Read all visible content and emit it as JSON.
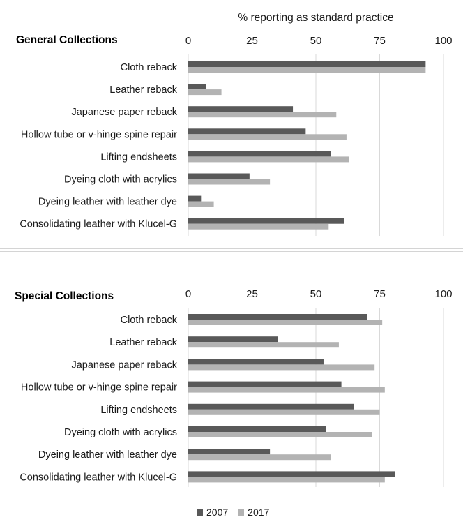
{
  "chart_data": [
    {
      "type": "bar",
      "orientation": "horizontal",
      "title": "General Collections",
      "xlabel": "% reporting as standard practice",
      "xlim": [
        0,
        100
      ],
      "ticks": [
        0,
        25,
        50,
        75,
        100
      ],
      "categories": [
        "Cloth reback",
        "Leather reback",
        "Japanese paper reback",
        "Hollow tube or v-hinge spine repair",
        "Lifting endsheets",
        "Dyeing cloth with acrylics",
        "Dyeing leather with leather dye",
        "Consolidating leather with Klucel-G"
      ],
      "series": [
        {
          "name": "2007",
          "values": [
            93,
            7,
            41,
            46,
            56,
            24,
            5,
            61
          ]
        },
        {
          "name": "2017",
          "values": [
            93,
            13,
            58,
            62,
            63,
            32,
            10,
            55
          ]
        }
      ]
    },
    {
      "type": "bar",
      "orientation": "horizontal",
      "title": "Special Collections",
      "xlim": [
        0,
        100
      ],
      "ticks": [
        0,
        25,
        50,
        75,
        100
      ],
      "categories": [
        "Cloth reback",
        "Leather reback",
        "Japanese paper reback",
        "Hollow tube or v-hinge spine repair",
        "Lifting endsheets",
        "Dyeing cloth with acrylics",
        "Dyeing leather with leather dye",
        "Consolidating leather with Klucel-G"
      ],
      "series": [
        {
          "name": "2007",
          "values": [
            70,
            35,
            53,
            60,
            65,
            54,
            32,
            81
          ]
        },
        {
          "name": "2017",
          "values": [
            76,
            59,
            73,
            77,
            75,
            72,
            56,
            77
          ]
        }
      ]
    }
  ],
  "legend": [
    {
      "label": "2007",
      "color": "#595959"
    },
    {
      "label": "2017",
      "color": "#b3b3b3"
    }
  ],
  "colors": {
    "gridline": "#d9d9d9",
    "series_2007": "#595959",
    "series_2017": "#b3b3b3"
  }
}
